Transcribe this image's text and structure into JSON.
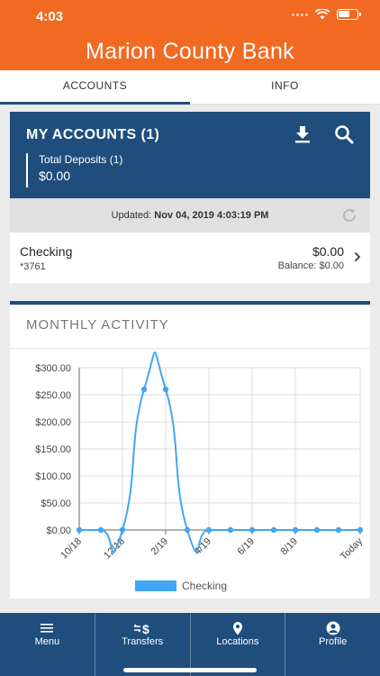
{
  "status_bar": {
    "time": "4:03"
  },
  "header": {
    "title": "Marion County Bank"
  },
  "tabs": [
    {
      "label": "ACCOUNTS",
      "active": true
    },
    {
      "label": "INFO",
      "active": false
    }
  ],
  "accounts": {
    "title": "MY ACCOUNTS",
    "count": "(1)",
    "icons": [
      "download-icon",
      "search-icon"
    ],
    "deposits_label": "Total Deposits (1)",
    "deposits_value": "$0.00"
  },
  "updated": {
    "prefix": "Updated:",
    "timestamp": "Nov 04, 2019 4:03:19 PM"
  },
  "account_rows": [
    {
      "name": "Checking",
      "number": "*3761",
      "amount": "$0.00",
      "balance": "Balance: $0.00"
    }
  ],
  "activity": {
    "title": "MONTHLY ACTIVITY"
  },
  "colors": {
    "brand_orange": "#f26a21",
    "navy": "#1f4e7d",
    "series_blue": "#42a5f5"
  },
  "chart_data": {
    "type": "line",
    "title": "MONTHLY ACTIVITY",
    "x": [
      "10/18",
      "11/18",
      "12/18",
      "1/19",
      "2/19",
      "3/19",
      "4/19",
      "5/19",
      "6/19",
      "7/19",
      "8/19",
      "9/19",
      "10/19",
      "Today"
    ],
    "x_tick_labels": [
      "10/18",
      "12/18",
      "2/19",
      "4/19",
      "6/19",
      "8/19",
      "Today"
    ],
    "series": [
      {
        "name": "Checking",
        "values": [
          0,
          0,
          0,
          260,
          260,
          0,
          0,
          0,
          0,
          0,
          0,
          0,
          0,
          0
        ]
      }
    ],
    "y_tick_labels": [
      "$300.00",
      "$250.00",
      "$200.00",
      "$150.00",
      "$100.00",
      "$50.00",
      "$0.00"
    ],
    "ylim": [
      0,
      300
    ],
    "grid": true,
    "legend": "bottom-center"
  },
  "bottom_nav": [
    {
      "label": "Menu",
      "icon": "menu-icon"
    },
    {
      "label": "Transfers",
      "icon": "transfers-icon"
    },
    {
      "label": "Locations",
      "icon": "location-pin-icon"
    },
    {
      "label": "Profile",
      "icon": "profile-icon"
    }
  ]
}
